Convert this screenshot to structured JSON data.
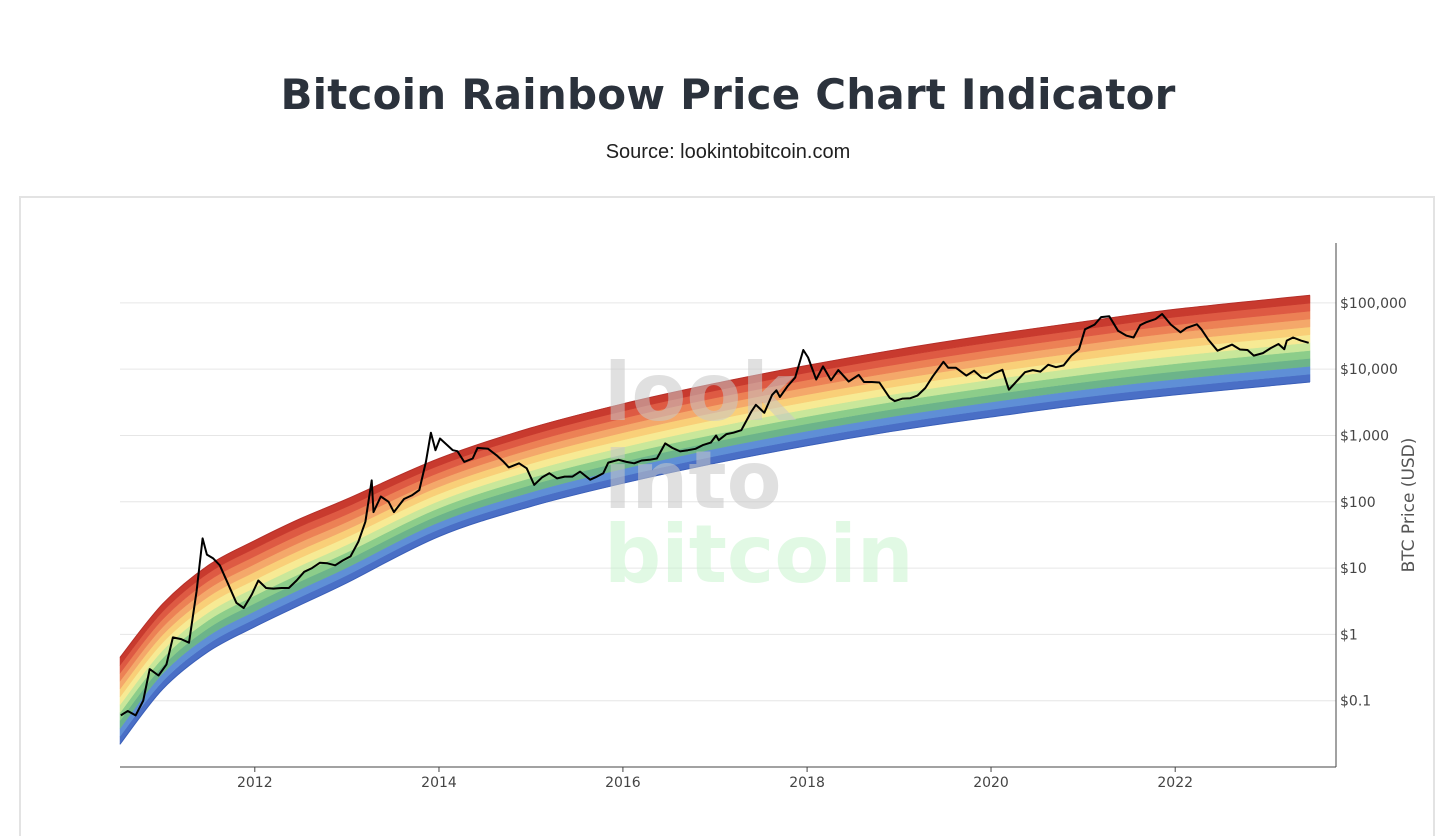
{
  "header": {
    "title": "Bitcoin Rainbow Price Chart Indicator",
    "subtitle": "Source: lookintobitcoin.com"
  },
  "watermark": {
    "line1": "look",
    "line2": "into",
    "line3": "bitcoin"
  },
  "colors": {
    "bands": [
      "#4a6fc6",
      "#5f8fd6",
      "#6cb48a",
      "#8ccd8a",
      "#c9e79a",
      "#f7ea94",
      "#f9cf78",
      "#f4a86a",
      "#ec8155",
      "#de5a43",
      "#c83a2e"
    ],
    "price_line": "#000000",
    "grid": "#e6e6e6",
    "axis": "#444444"
  },
  "chart_data": {
    "type": "area",
    "title": "Bitcoin Rainbow Price Chart Indicator",
    "subtitle": "Source: lookintobitcoin.com",
    "xlabel": "",
    "ylabel": "BTC Price (USD)",
    "y_scale": "log",
    "xlim": [
      "2010-07-15",
      "2023-06-20"
    ],
    "ylim": [
      0.01,
      800000
    ],
    "x_ticks": [
      "2012",
      "2014",
      "2016",
      "2018",
      "2020",
      "2022"
    ],
    "y_ticks": [
      {
        "value": 0.1,
        "label": "$0.1"
      },
      {
        "value": 1,
        "label": "$1"
      },
      {
        "value": 10,
        "label": "$10"
      },
      {
        "value": 100,
        "label": "$100"
      },
      {
        "value": 1000,
        "label": "$1,000"
      },
      {
        "value": 10000,
        "label": "$10,000"
      },
      {
        "value": 100000,
        "label": "$100,000"
      }
    ],
    "y_axis_side": "right",
    "grid": true,
    "legend": false,
    "rainbow_band_boundaries": {
      "x": [
        "2010-07-15",
        "2011-01-01",
        "2011-07-01",
        "2012-01-01",
        "2012-07-01",
        "2013-01-01",
        "2014-01-01",
        "2015-01-01",
        "2016-01-01",
        "2017-01-01",
        "2018-01-01",
        "2019-01-01",
        "2020-01-01",
        "2021-01-01",
        "2022-01-01",
        "2023-06-20"
      ],
      "lower": [
        0.022,
        0.15,
        0.55,
        1.3,
        2.8,
        6.0,
        30,
        85,
        190,
        380,
        700,
        1200,
        1900,
        2900,
        4100,
        6400
      ],
      "upper": [
        0.45,
        2.9,
        11,
        26,
        56,
        110,
        450,
        1300,
        3000,
        6100,
        11400,
        20000,
        33000,
        52000,
        80000,
        130000
      ]
    },
    "series": [
      {
        "name": "BTC Price",
        "x": [
          "2010-07-18",
          "2010-08-15",
          "2010-09-15",
          "2010-10-15",
          "2010-11-10",
          "2010-12-15",
          "2011-01-15",
          "2011-02-10",
          "2011-03-15",
          "2011-04-15",
          "2011-05-15",
          "2011-06-08",
          "2011-06-25",
          "2011-07-20",
          "2011-08-15",
          "2011-09-15",
          "2011-10-20",
          "2011-11-18",
          "2011-12-20",
          "2012-01-15",
          "2012-02-15",
          "2012-03-15",
          "2012-04-15",
          "2012-05-15",
          "2012-06-15",
          "2012-07-15",
          "2012-08-15",
          "2012-09-15",
          "2012-10-15",
          "2012-11-15",
          "2012-12-15",
          "2013-01-15",
          "2013-02-15",
          "2013-03-15",
          "2013-04-09",
          "2013-04-16",
          "2013-05-15",
          "2013-06-15",
          "2013-07-06",
          "2013-08-15",
          "2013-09-15",
          "2013-10-15",
          "2013-11-10",
          "2013-11-30",
          "2013-12-18",
          "2014-01-05",
          "2014-02-25",
          "2014-03-15",
          "2014-04-11",
          "2014-05-15",
          "2014-06-03",
          "2014-07-15",
          "2014-08-18",
          "2014-09-15",
          "2014-10-05",
          "2014-11-15",
          "2014-12-15",
          "2015-01-14",
          "2015-02-15",
          "2015-03-15",
          "2015-04-15",
          "2015-05-15",
          "2015-06-15",
          "2015-07-15",
          "2015-08-24",
          "2015-09-15",
          "2015-10-15",
          "2015-11-04",
          "2015-12-15",
          "2016-01-15",
          "2016-02-15",
          "2016-03-15",
          "2016-04-15",
          "2016-05-15",
          "2016-06-17",
          "2016-07-15",
          "2016-08-15",
          "2016-09-15",
          "2016-10-15",
          "2016-11-15",
          "2016-12-15",
          "2017-01-05",
          "2017-01-15",
          "2017-02-15",
          "2017-03-15",
          "2017-04-15",
          "2017-05-25",
          "2017-06-12",
          "2017-07-15",
          "2017-08-15",
          "2017-09-01",
          "2017-09-15",
          "2017-10-15",
          "2017-11-15",
          "2017-12-17",
          "2018-01-05",
          "2018-02-06",
          "2018-03-05",
          "2018-04-06",
          "2018-05-05",
          "2018-06-15",
          "2018-07-25",
          "2018-08-15",
          "2018-09-15",
          "2018-10-15",
          "2018-11-25",
          "2018-12-15",
          "2019-01-15",
          "2019-02-15",
          "2019-03-15",
          "2019-04-15",
          "2019-05-15",
          "2019-06-26",
          "2019-07-15",
          "2019-08-15",
          "2019-09-25",
          "2019-10-26",
          "2019-11-25",
          "2019-12-15",
          "2020-01-15",
          "2020-02-15",
          "2020-03-12",
          "2020-04-15",
          "2020-05-15",
          "2020-06-15",
          "2020-07-15",
          "2020-08-15",
          "2020-09-15",
          "2020-10-15",
          "2020-11-15",
          "2020-12-15",
          "2021-01-08",
          "2021-02-15",
          "2021-03-13",
          "2021-04-14",
          "2021-05-19",
          "2021-06-22",
          "2021-07-20",
          "2021-08-15",
          "2021-09-07",
          "2021-10-15",
          "2021-11-10",
          "2021-12-15",
          "2022-01-22",
          "2022-02-15",
          "2022-03-28",
          "2022-04-15",
          "2022-05-12",
          "2022-06-18",
          "2022-07-15",
          "2022-08-15",
          "2022-09-15",
          "2022-10-15",
          "2022-11-09",
          "2022-12-15",
          "2023-01-15",
          "2023-02-15",
          "2023-03-10",
          "2023-03-20",
          "2023-04-14",
          "2023-05-15",
          "2023-06-15"
        ],
        "y": [
          0.06,
          0.07,
          0.06,
          0.1,
          0.3,
          0.24,
          0.35,
          0.9,
          0.85,
          0.75,
          4.5,
          28,
          16,
          14,
          11,
          6,
          3,
          2.5,
          4,
          6.5,
          5,
          4.9,
          5,
          5,
          6.5,
          8.8,
          10,
          12,
          11.8,
          11,
          13,
          15,
          25,
          50,
          210,
          70,
          120,
          100,
          70,
          110,
          125,
          150,
          400,
          1100,
          600,
          900,
          600,
          580,
          400,
          450,
          650,
          630,
          500,
          400,
          330,
          380,
          320,
          180,
          235,
          270,
          225,
          240,
          240,
          285,
          215,
          235,
          270,
          390,
          430,
          400,
          380,
          420,
          430,
          450,
          760,
          650,
          575,
          600,
          630,
          720,
          780,
          1000,
          850,
          1050,
          1100,
          1200,
          2300,
          2900,
          2200,
          4100,
          4800,
          3800,
          5500,
          7500,
          19500,
          15000,
          7000,
          11000,
          6800,
          9700,
          6500,
          8200,
          6400,
          6400,
          6300,
          3700,
          3300,
          3600,
          3650,
          4000,
          5200,
          7800,
          12900,
          10500,
          10500,
          8000,
          9500,
          7500,
          7300,
          8700,
          9800,
          4900,
          6800,
          9000,
          9700,
          9200,
          11700,
          10700,
          11400,
          16000,
          20000,
          40000,
          47000,
          61000,
          63000,
          38000,
          32000,
          30000,
          46000,
          51000,
          57000,
          68000,
          47000,
          36000,
          42000,
          47500,
          40000,
          28000,
          19000,
          21000,
          23500,
          19800,
          19500,
          16000,
          17500,
          20800,
          24000,
          20000,
          27000,
          30000,
          27000,
          25000
        ]
      }
    ]
  }
}
